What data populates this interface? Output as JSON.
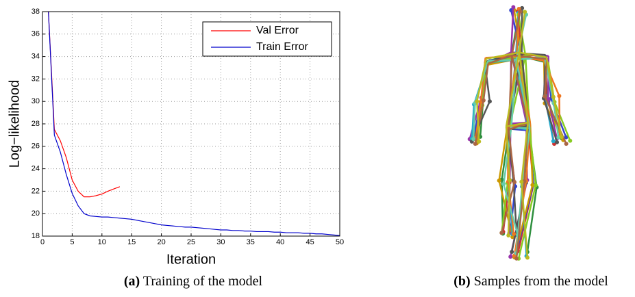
{
  "chart_data": {
    "type": "line",
    "xlabel": "Iteration",
    "ylabel": "Log−likelihood",
    "x": [
      1,
      2,
      3,
      4,
      5,
      6,
      7,
      8,
      9,
      10,
      11,
      12,
      13,
      14,
      15,
      16,
      17,
      18,
      19,
      20,
      21,
      22,
      23,
      24,
      25,
      26,
      27,
      28,
      29,
      30,
      31,
      32,
      33,
      34,
      35,
      36,
      37,
      38,
      39,
      40,
      41,
      42,
      43,
      44,
      45,
      46,
      47,
      48,
      49,
      50
    ],
    "series": [
      {
        "name": "Val Error",
        "color": "#ff0000",
        "values": [
          38,
          27.5,
          26.5,
          25,
          23,
          22,
          21.5,
          21.5,
          21.6,
          21.75,
          22,
          22.2,
          22.4,
          null,
          null,
          null,
          null,
          null,
          null,
          null,
          null,
          null,
          null,
          null,
          null,
          null,
          null,
          null,
          null,
          null,
          null,
          null,
          null,
          null,
          null,
          null,
          null,
          null,
          null,
          null,
          null,
          null,
          null,
          null,
          null,
          null,
          null,
          null,
          null,
          null
        ]
      },
      {
        "name": "Train Error",
        "color": "#0000cc",
        "values": [
          38,
          27,
          25.5,
          23.5,
          21.8,
          20.7,
          20.0,
          19.8,
          19.75,
          19.7,
          19.7,
          19.65,
          19.6,
          19.55,
          19.5,
          19.4,
          19.3,
          19.2,
          19.1,
          19.0,
          18.95,
          18.9,
          18.85,
          18.8,
          18.8,
          18.75,
          18.7,
          18.65,
          18.6,
          18.55,
          18.55,
          18.5,
          18.5,
          18.45,
          18.45,
          18.4,
          18.4,
          18.4,
          18.35,
          18.35,
          18.3,
          18.3,
          18.3,
          18.25,
          18.25,
          18.2,
          18.2,
          18.15,
          18.1,
          18.05
        ]
      }
    ],
    "xlim": [
      0,
      50
    ],
    "xticks": [
      0,
      5,
      10,
      15,
      20,
      25,
      30,
      35,
      40,
      45,
      50
    ],
    "ylim": [
      18,
      38
    ],
    "yticks": [
      18,
      20,
      22,
      24,
      26,
      28,
      30,
      32,
      34,
      36,
      38
    ],
    "grid": true,
    "legend": "upper right"
  },
  "captions": [
    {
      "label": "(a)",
      "text": "Training of the model"
    },
    {
      "label": "(b)",
      "text": "Samples from the model"
    }
  ]
}
